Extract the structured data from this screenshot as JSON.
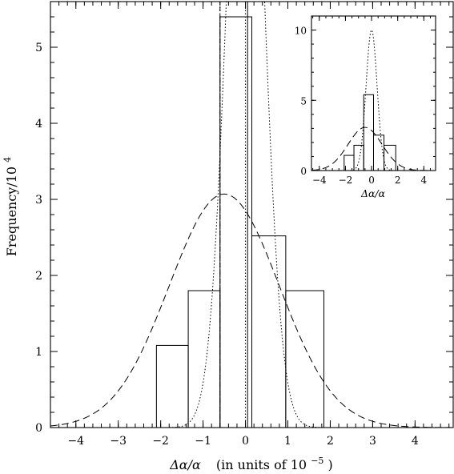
{
  "chart_data": [
    {
      "type": "bar",
      "panel": "main",
      "title": "",
      "xlabel_parts": {
        "quantity": "Δα/α",
        "units": "(in units of 10",
        "exponent": "−5",
        "close": ")"
      },
      "ylabel_parts": {
        "base": "Frequency/10",
        "exponent": "4"
      },
      "xlim": [
        -4.6,
        4.9
      ],
      "ylim": [
        0,
        5.6
      ],
      "xticks": [
        -4,
        -3,
        -2,
        -1,
        0,
        1,
        2,
        3,
        4
      ],
      "xtick_labels": [
        "−4",
        "−3",
        "−2",
        "−1",
        "0",
        "1",
        "2",
        "3",
        "4"
      ],
      "yticks": [
        0,
        1,
        2,
        3,
        4,
        5
      ],
      "ytick_labels": [
        "0",
        "1",
        "2",
        "3",
        "4",
        "5"
      ],
      "histogram": {
        "bin_edges": [
          -2.1,
          -1.35,
          -0.6,
          0.15,
          0.95,
          1.85
        ],
        "values": [
          1.08,
          1.8,
          5.4,
          2.52,
          1.8
        ]
      },
      "series": [
        {
          "style": "dashed",
          "kind": "gaussian",
          "mean": -0.5,
          "sigma": 1.3,
          "peak": 3.07
        },
        {
          "style": "dotted",
          "kind": "gaussian",
          "mean": 0.0,
          "sigma": 0.42,
          "peak": 10.0
        }
      ],
      "vertical_lines": [
        {
          "style": "dashed",
          "x": -0.6
        },
        {
          "style": "dotted",
          "x": -0.6
        },
        {
          "style": "dotted",
          "x": 0.0
        },
        {
          "style": "solid",
          "x": 0.05
        }
      ],
      "grid": false
    },
    {
      "type": "bar",
      "panel": "inset",
      "title": "",
      "xlabel": "Δα/α",
      "xlim": [
        -4.6,
        4.9
      ],
      "ylim": [
        0,
        11
      ],
      "xticks": [
        -4,
        -2,
        0,
        2,
        4
      ],
      "xtick_labels": [
        "−4",
        "−2",
        "0",
        "2",
        "4"
      ],
      "yticks": [
        0,
        5,
        10
      ],
      "ytick_labels": [
        "0",
        "5",
        "10"
      ],
      "histogram": {
        "bin_edges": [
          -2.1,
          -1.35,
          -0.6,
          0.15,
          0.95,
          1.85
        ],
        "values": [
          1.08,
          1.8,
          5.4,
          2.52,
          1.8
        ]
      },
      "series": [
        {
          "style": "dashed",
          "kind": "gaussian",
          "mean": -0.5,
          "sigma": 1.3,
          "peak": 3.07
        },
        {
          "style": "dotted",
          "kind": "gaussian",
          "mean": 0.0,
          "sigma": 0.42,
          "peak": 10.0
        }
      ],
      "grid": false
    }
  ]
}
